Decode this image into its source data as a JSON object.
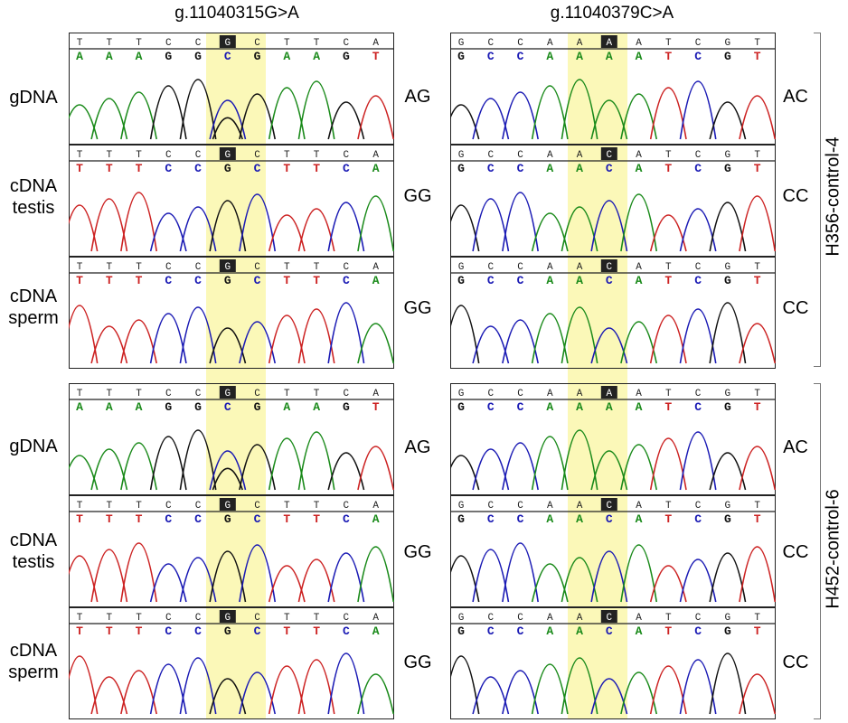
{
  "variants": [
    {
      "label": "g.11040315G>A"
    },
    {
      "label": "g.11040379C>A"
    }
  ],
  "sample_labels": [
    {
      "line1": "gDNA",
      "line2": ""
    },
    {
      "line1": "cDNA",
      "line2": "testis"
    },
    {
      "line1": "cDNA",
      "line2": "sperm"
    }
  ],
  "groups": [
    {
      "label": "H356-control-4",
      "genotypes_left": [
        "AG",
        "GG",
        "GG"
      ],
      "genotypes_right": [
        "AC",
        "CC",
        "CC"
      ]
    },
    {
      "label": "H452-control-6",
      "genotypes_left": [
        "AG",
        "GG",
        "GG"
      ],
      "genotypes_right": [
        "AC",
        "CC",
        "CC"
      ]
    }
  ],
  "traces": {
    "left_top": [
      {
        "bases_top": "T T T C C G C T T C A",
        "bases_bottom": "A A A G G C G A A G T",
        "highlight": 5
      },
      {
        "bases_top": "T T T C C G C T T C A",
        "bases_bottom": "T T T C C G C T T C A",
        "highlight": 5
      },
      {
        "bases_top": "T T T C C G C T T C A",
        "bases_bottom": "T T T C C G C T T C A",
        "highlight": 5
      }
    ],
    "right_top": [
      {
        "bases_top": "G C C A A A A T C G T",
        "bases_bottom": "G C C A A A A T C G T",
        "highlight": 5
      },
      {
        "bases_top": "G C C A A C A T C G T",
        "bases_bottom": "G C C A A C A T C G T",
        "highlight": 5
      },
      {
        "bases_top": "G C C A A C A T C G T",
        "bases_bottom": "G C C A A C A T C G T",
        "highlight": 5
      }
    ]
  },
  "colors": {
    "A": "#1a8a1a",
    "C": "#1a1ab4",
    "G": "#111111",
    "T": "#cc2222",
    "highlight": "#fbf8b8"
  }
}
